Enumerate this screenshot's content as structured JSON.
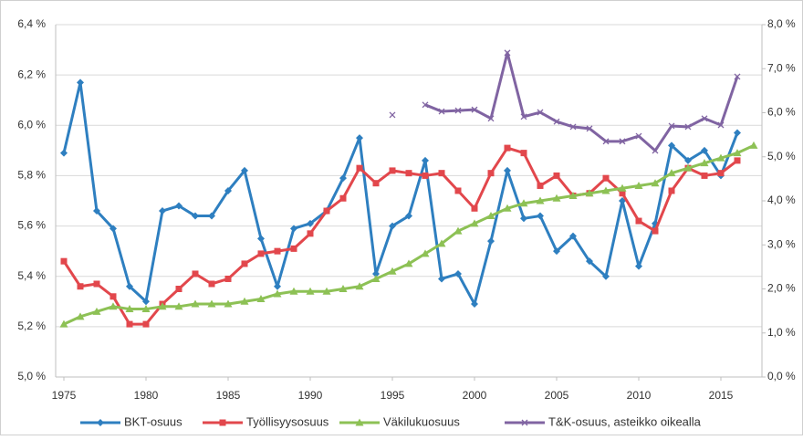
{
  "chart_data": {
    "type": "line",
    "x": [
      1975,
      1976,
      1977,
      1978,
      1979,
      1980,
      1981,
      1982,
      1983,
      1984,
      1985,
      1986,
      1987,
      1988,
      1989,
      1990,
      1991,
      1992,
      1993,
      1994,
      1995,
      1996,
      1997,
      1998,
      1999,
      2000,
      2001,
      2002,
      2003,
      2004,
      2005,
      2006,
      2007,
      2008,
      2009,
      2010,
      2011,
      2012,
      2013,
      2014,
      2015,
      2016,
      2017
    ],
    "xlim": [
      1974.5,
      2017.5
    ],
    "xticks": [
      1975,
      1980,
      1985,
      1990,
      1995,
      2000,
      2005,
      2010,
      2015
    ],
    "ylim": [
      5.0,
      6.4
    ],
    "yticks": [
      {
        "value": 5.0,
        "label": "5,0 %"
      },
      {
        "value": 5.2,
        "label": "5,2 %"
      },
      {
        "value": 5.4,
        "label": "5,4 %"
      },
      {
        "value": 5.6,
        "label": "5,6 %"
      },
      {
        "value": 5.8,
        "label": "5,8 %"
      },
      {
        "value": 6.0,
        "label": "6,0 %"
      },
      {
        "value": 6.2,
        "label": "6,2 %"
      },
      {
        "value": 6.4,
        "label": "6,4 %"
      }
    ],
    "y2lim": [
      0,
      8
    ],
    "y2ticks": [
      {
        "value": 0,
        "label": "0,0 %"
      },
      {
        "value": 1,
        "label": "1,0 %"
      },
      {
        "value": 2,
        "label": "2,0 %"
      },
      {
        "value": 3,
        "label": "3,0 %"
      },
      {
        "value": 4,
        "label": "4,0 %"
      },
      {
        "value": 5,
        "label": "5,0 %"
      },
      {
        "value": 6,
        "label": "6,0 %"
      },
      {
        "value": 7,
        "label": "7,0 %"
      },
      {
        "value": 8,
        "label": "8,0 %"
      }
    ],
    "grid": true,
    "legend": "bottom",
    "series": [
      {
        "name": "BKT-osuus",
        "color": "#2e7fc0",
        "marker": "diamond",
        "values": [
          5.89,
          6.17,
          5.66,
          5.59,
          5.36,
          5.3,
          5.66,
          5.68,
          5.64,
          5.64,
          5.74,
          5.82,
          5.55,
          5.36,
          5.59,
          5.61,
          5.66,
          5.79,
          5.95,
          5.41,
          5.6,
          5.64,
          5.86,
          5.39,
          5.41,
          5.29,
          5.54,
          5.82,
          5.63,
          5.64,
          5.5,
          5.56,
          5.46,
          5.4,
          5.7,
          5.44,
          5.61,
          5.92,
          5.86,
          5.9,
          5.8,
          5.97,
          null
        ]
      },
      {
        "name": "Työllisyysosuus",
        "color": "#e2474c",
        "marker": "square",
        "values": [
          5.46,
          5.36,
          5.37,
          5.32,
          5.21,
          5.21,
          5.29,
          5.35,
          5.41,
          5.37,
          5.39,
          5.45,
          5.49,
          5.5,
          5.51,
          5.57,
          5.66,
          5.71,
          5.83,
          5.77,
          5.82,
          5.81,
          5.8,
          5.81,
          5.74,
          5.67,
          5.81,
          5.91,
          5.89,
          5.76,
          5.8,
          5.72,
          5.73,
          5.79,
          5.73,
          5.62,
          5.58,
          5.74,
          5.83,
          5.8,
          5.81,
          5.86,
          null
        ]
      },
      {
        "name": "Väkilukuosuus",
        "color": "#8dc155",
        "marker": "triangle",
        "values": [
          5.21,
          5.24,
          5.26,
          5.28,
          5.27,
          5.27,
          5.28,
          5.28,
          5.29,
          5.29,
          5.29,
          5.3,
          5.31,
          5.33,
          5.34,
          5.34,
          5.34,
          5.35,
          5.36,
          5.39,
          5.42,
          5.45,
          5.49,
          5.53,
          5.58,
          5.61,
          5.64,
          5.67,
          5.69,
          5.7,
          5.71,
          5.72,
          5.73,
          5.74,
          5.75,
          5.76,
          5.77,
          5.81,
          5.83,
          5.85,
          5.87,
          5.89,
          5.92
        ]
      },
      {
        "name": "T&K-osuus, asteikko oikealla",
        "color": "#8064a2",
        "marker": "x",
        "axis": "y2",
        "values": [
          null,
          null,
          null,
          null,
          null,
          null,
          null,
          null,
          null,
          null,
          null,
          null,
          null,
          null,
          null,
          null,
          null,
          null,
          null,
          null,
          5.95,
          null,
          6.18,
          6.03,
          6.05,
          6.07,
          5.87,
          7.36,
          5.91,
          6.01,
          5.8,
          5.68,
          5.64,
          5.35,
          5.35,
          5.47,
          5.14,
          5.7,
          5.68,
          5.87,
          5.72,
          6.82,
          null
        ]
      }
    ]
  }
}
